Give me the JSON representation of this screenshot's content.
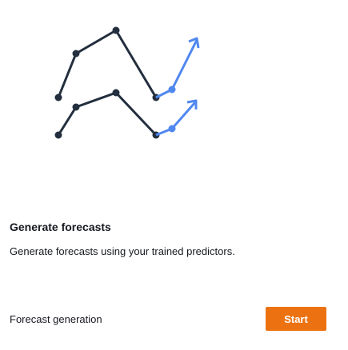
{
  "illustration": {
    "icon": "forecast-lines-icon",
    "line_color": "#232f3e",
    "forecast_color": "#5088f0"
  },
  "section": {
    "title": "Generate forecasts",
    "description": "Generate forecasts using your trained predictors."
  },
  "step": {
    "label": "Forecast generation",
    "button_label": "Start",
    "button_color": "#ec7211"
  }
}
